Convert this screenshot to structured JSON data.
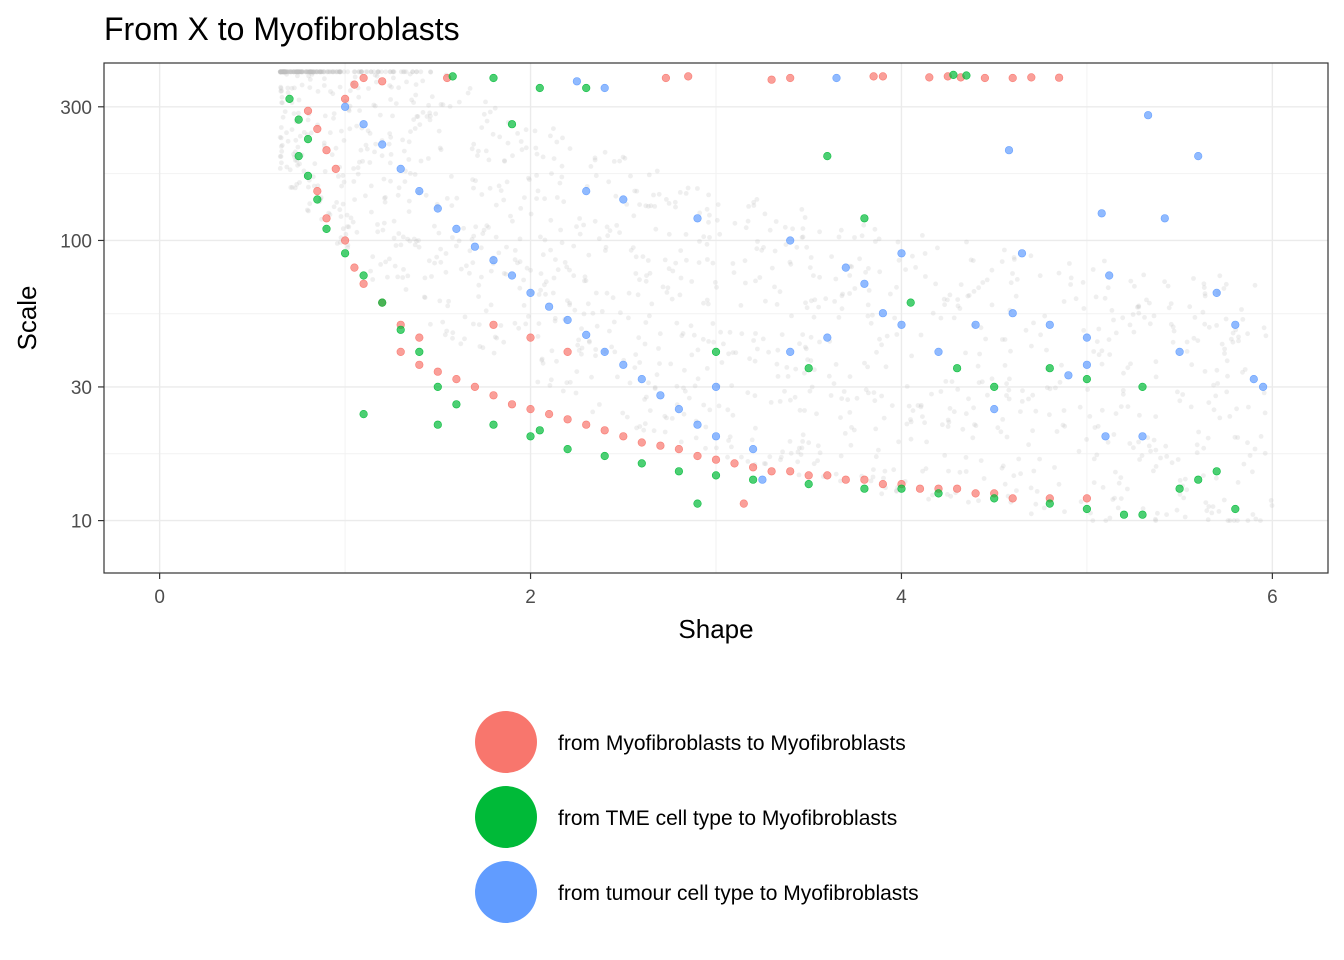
{
  "chart_data": {
    "type": "scatter",
    "title": "From X to  Myofibroblasts",
    "xlabel": "Shape",
    "ylabel": "Scale",
    "xlim": [
      -0.3,
      6.3
    ],
    "ylim": [
      6.5,
      430
    ],
    "y_scale": "log10",
    "x_ticks": [
      0,
      2,
      4,
      6
    ],
    "x_tick_labels": [
      "0",
      "2",
      "4",
      "6"
    ],
    "y_ticks": [
      10,
      30,
      100,
      300
    ],
    "y_tick_labels": [
      "10",
      "30",
      "100",
      "300"
    ],
    "grid": true,
    "legend_position": "bottom",
    "background_cloud": {
      "color": "#bfbfbf",
      "description_shape": "hyperbolic band",
      "x_range": [
        0.65,
        6.0
      ],
      "y_range": [
        10,
        400
      ]
    },
    "series": [
      {
        "name": "from Myofibroblasts to Myofibroblasts",
        "color": "#F8766D",
        "points": [
          [
            0.8,
            290
          ],
          [
            0.85,
            250
          ],
          [
            0.9,
            210
          ],
          [
            0.95,
            180
          ],
          [
            1.0,
            320
          ],
          [
            1.05,
            360
          ],
          [
            1.1,
            380
          ],
          [
            1.2,
            370
          ],
          [
            0.85,
            150
          ],
          [
            0.9,
            120
          ],
          [
            1.0,
            100
          ],
          [
            1.05,
            80
          ],
          [
            1.1,
            70
          ],
          [
            1.2,
            60
          ],
          [
            1.3,
            50
          ],
          [
            1.4,
            45
          ],
          [
            1.3,
            40
          ],
          [
            1.4,
            36
          ],
          [
            1.5,
            34
          ],
          [
            1.6,
            32
          ],
          [
            1.7,
            30
          ],
          [
            1.8,
            28
          ],
          [
            1.9,
            26
          ],
          [
            2.0,
            25
          ],
          [
            2.1,
            24
          ],
          [
            2.2,
            23
          ],
          [
            2.3,
            22
          ],
          [
            2.4,
            21
          ],
          [
            2.5,
            20
          ],
          [
            2.6,
            19
          ],
          [
            2.7,
            18.5
          ],
          [
            2.8,
            18
          ],
          [
            2.9,
            17
          ],
          [
            3.0,
            16.5
          ],
          [
            3.1,
            16
          ],
          [
            3.2,
            15.5
          ],
          [
            3.3,
            15
          ],
          [
            3.4,
            15
          ],
          [
            3.5,
            14.5
          ],
          [
            3.6,
            14.5
          ],
          [
            3.7,
            14
          ],
          [
            3.8,
            14
          ],
          [
            3.9,
            13.5
          ],
          [
            4.0,
            13.5
          ],
          [
            4.1,
            13
          ],
          [
            4.2,
            13
          ],
          [
            4.3,
            13
          ],
          [
            4.4,
            12.5
          ],
          [
            4.5,
            12.5
          ],
          [
            4.6,
            12
          ],
          [
            4.8,
            12
          ],
          [
            5.0,
            12
          ],
          [
            3.15,
            11.5
          ],
          [
            2.0,
            45
          ],
          [
            2.2,
            40
          ],
          [
            1.8,
            50
          ],
          [
            2.73,
            380
          ],
          [
            2.85,
            385
          ],
          [
            3.3,
            375
          ],
          [
            3.4,
            380
          ],
          [
            3.85,
            385
          ],
          [
            3.9,
            385
          ],
          [
            4.15,
            382
          ],
          [
            4.25,
            385
          ],
          [
            4.32,
            382
          ],
          [
            4.45,
            380
          ],
          [
            4.6,
            380
          ],
          [
            4.7,
            382
          ],
          [
            4.85,
            381
          ],
          [
            1.55,
            380
          ]
        ]
      },
      {
        "name": "from TME cell type to Myofibroblasts",
        "color": "#00BA38",
        "points": [
          [
            0.7,
            320
          ],
          [
            0.75,
            270
          ],
          [
            0.8,
            230
          ],
          [
            0.75,
            200
          ],
          [
            0.8,
            170
          ],
          [
            0.85,
            140
          ],
          [
            0.9,
            110
          ],
          [
            1.0,
            90
          ],
          [
            1.1,
            75
          ],
          [
            1.2,
            60
          ],
          [
            1.3,
            48
          ],
          [
            1.4,
            40
          ],
          [
            1.5,
            30
          ],
          [
            1.6,
            26
          ],
          [
            1.8,
            22
          ],
          [
            2.0,
            20
          ],
          [
            2.2,
            18
          ],
          [
            2.4,
            17
          ],
          [
            2.6,
            16
          ],
          [
            2.8,
            15
          ],
          [
            3.0,
            14.5
          ],
          [
            3.2,
            14
          ],
          [
            3.5,
            13.5
          ],
          [
            3.8,
            13
          ],
          [
            4.0,
            13
          ],
          [
            4.2,
            12.5
          ],
          [
            4.5,
            12
          ],
          [
            4.8,
            11.5
          ],
          [
            5.0,
            11
          ],
          [
            5.2,
            10.5
          ],
          [
            5.3,
            10.5
          ],
          [
            5.5,
            13
          ],
          [
            5.6,
            14
          ],
          [
            5.7,
            15
          ],
          [
            5.8,
            11
          ],
          [
            1.1,
            24
          ],
          [
            1.5,
            22
          ],
          [
            2.05,
            21
          ],
          [
            2.9,
            11.5
          ],
          [
            3.6,
            200
          ],
          [
            3.8,
            120
          ],
          [
            4.05,
            60
          ],
          [
            3.0,
            40
          ],
          [
            3.5,
            35
          ],
          [
            4.3,
            35
          ],
          [
            4.5,
            30
          ],
          [
            4.8,
            35
          ],
          [
            5.0,
            32
          ],
          [
            5.3,
            30
          ],
          [
            4.28,
            390
          ],
          [
            4.35,
            388
          ],
          [
            1.58,
            385
          ],
          [
            1.8,
            380
          ],
          [
            2.05,
            350
          ],
          [
            2.3,
            350
          ],
          [
            1.9,
            260
          ]
        ]
      },
      {
        "name": "from tumour cell type to Myofibroblasts",
        "color": "#619CFF",
        "points": [
          [
            1.0,
            300
          ],
          [
            1.1,
            260
          ],
          [
            1.2,
            220
          ],
          [
            1.3,
            180
          ],
          [
            1.4,
            150
          ],
          [
            1.5,
            130
          ],
          [
            1.6,
            110
          ],
          [
            1.7,
            95
          ],
          [
            1.8,
            85
          ],
          [
            1.9,
            75
          ],
          [
            2.0,
            65
          ],
          [
            2.1,
            58
          ],
          [
            2.2,
            52
          ],
          [
            2.3,
            46
          ],
          [
            2.4,
            40
          ],
          [
            2.5,
            36
          ],
          [
            2.6,
            32
          ],
          [
            2.7,
            28
          ],
          [
            2.8,
            25
          ],
          [
            2.9,
            22
          ],
          [
            3.0,
            20
          ],
          [
            3.2,
            18
          ],
          [
            3.4,
            40
          ],
          [
            3.6,
            45
          ],
          [
            3.8,
            70
          ],
          [
            3.9,
            55
          ],
          [
            4.0,
            50
          ],
          [
            4.2,
            40
          ],
          [
            4.4,
            50
          ],
          [
            4.6,
            55
          ],
          [
            4.8,
            50
          ],
          [
            5.0,
            45
          ],
          [
            5.1,
            20
          ],
          [
            5.3,
            20
          ],
          [
            5.5,
            40
          ],
          [
            5.7,
            65
          ],
          [
            5.8,
            50
          ],
          [
            5.9,
            32
          ],
          [
            5.95,
            30
          ],
          [
            5.33,
            280
          ],
          [
            5.6,
            200
          ],
          [
            4.58,
            210
          ],
          [
            5.08,
            125
          ],
          [
            5.42,
            120
          ],
          [
            5.12,
            75
          ],
          [
            4.65,
            90
          ],
          [
            4.0,
            90
          ],
          [
            3.25,
            14
          ],
          [
            2.4,
            350
          ],
          [
            2.3,
            150
          ],
          [
            2.5,
            140
          ],
          [
            2.9,
            120
          ],
          [
            3.4,
            100
          ],
          [
            3.7,
            80
          ],
          [
            4.9,
            33
          ],
          [
            5.0,
            36
          ],
          [
            3.65,
            380
          ],
          [
            2.25,
            370
          ],
          [
            4.5,
            25
          ],
          [
            3.0,
            30
          ]
        ]
      }
    ]
  }
}
